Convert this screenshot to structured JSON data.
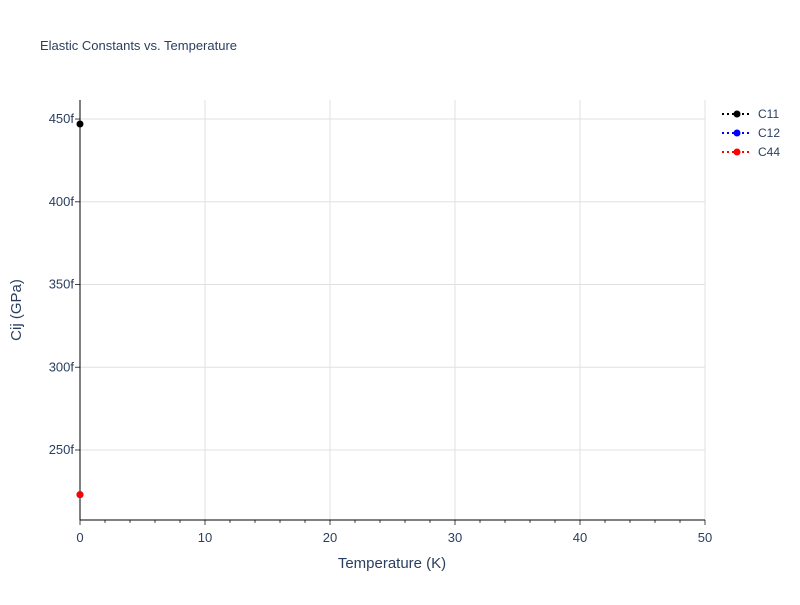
{
  "chart_data": {
    "type": "line",
    "title": "Elastic Constants vs. Temperature",
    "xlabel": "Temperature (K)",
    "ylabel": "Cij (GPa)",
    "xlim": [
      0,
      50
    ],
    "ylim": [
      2.077e-13,
      4.615e-13
    ],
    "x_ticks": [
      0,
      10,
      20,
      30,
      40,
      50
    ],
    "x_tick_labels": [
      "0",
      "10",
      "20",
      "30",
      "40",
      "50"
    ],
    "y_ticks": [
      2.5e-13,
      3e-13,
      3.5e-13,
      4e-13,
      4.5e-13
    ],
    "y_tick_labels": [
      "250f",
      "300f",
      "350f",
      "400f",
      "450f"
    ],
    "grid": true,
    "legend_placement": "top-right",
    "series": [
      {
        "name": "C11",
        "color": "#000000",
        "line": "dotted",
        "marker": "circle",
        "x": [
          0
        ],
        "y": [
          4.47e-13
        ]
      },
      {
        "name": "C12",
        "color": "#0000ff",
        "line": "dotted",
        "marker": "circle",
        "x": [
          0
        ],
        "y": [
          2.23e-13
        ]
      },
      {
        "name": "C44",
        "color": "#ff0000",
        "line": "dotted",
        "marker": "circle",
        "x": [
          0
        ],
        "y": [
          2.23e-13
        ]
      }
    ]
  }
}
